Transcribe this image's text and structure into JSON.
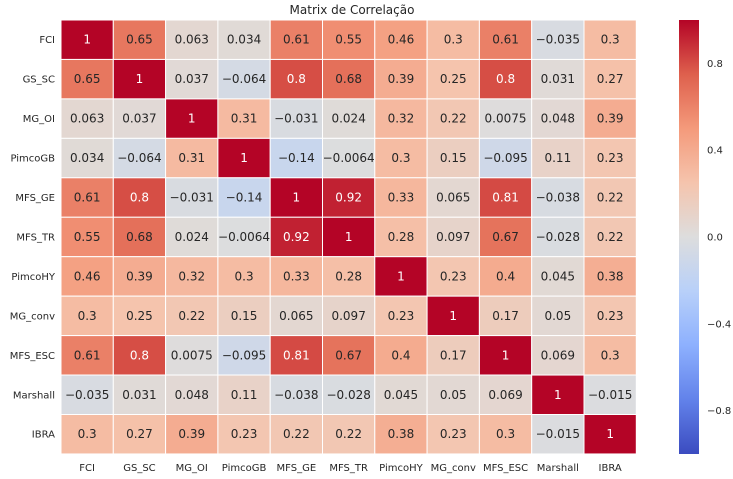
{
  "chart_data": {
    "type": "heatmap",
    "title": "Matrix de Correlação",
    "xlabel": "",
    "ylabel": "",
    "labels": [
      "FCI",
      "GS_SC",
      "MG_OI",
      "PimcoGB",
      "MFS_GE",
      "MFS_TR",
      "PimcoHY",
      "MG_conv",
      "MFS_ESC",
      "Marshall",
      "IBRA"
    ],
    "values": [
      [
        1,
        0.65,
        0.063,
        0.034,
        0.61,
        0.55,
        0.46,
        0.3,
        0.61,
        -0.035,
        0.3
      ],
      [
        0.65,
        1,
        0.037,
        -0.064,
        0.8,
        0.68,
        0.39,
        0.25,
        0.8,
        0.031,
        0.27
      ],
      [
        0.063,
        0.037,
        1,
        0.31,
        -0.031,
        0.024,
        0.32,
        0.22,
        0.0075,
        0.048,
        0.39
      ],
      [
        0.034,
        -0.064,
        0.31,
        1,
        -0.14,
        -0.0064,
        0.3,
        0.15,
        -0.095,
        0.11,
        0.23
      ],
      [
        0.61,
        0.8,
        -0.031,
        -0.14,
        1,
        0.92,
        0.33,
        0.065,
        0.81,
        -0.038,
        0.22
      ],
      [
        0.55,
        0.68,
        0.024,
        -0.0064,
        0.92,
        1,
        0.28,
        0.097,
        0.67,
        -0.028,
        0.22
      ],
      [
        0.46,
        0.39,
        0.32,
        0.3,
        0.33,
        0.28,
        1,
        0.23,
        0.4,
        0.045,
        0.38
      ],
      [
        0.3,
        0.25,
        0.22,
        0.15,
        0.065,
        0.097,
        0.23,
        1,
        0.17,
        0.05,
        0.23
      ],
      [
        0.61,
        0.8,
        0.0075,
        -0.095,
        0.81,
        0.67,
        0.4,
        0.17,
        1,
        0.069,
        0.3
      ],
      [
        -0.035,
        0.031,
        0.048,
        0.11,
        -0.038,
        -0.028,
        0.045,
        0.05,
        0.069,
        1,
        -0.015
      ],
      [
        0.3,
        0.27,
        0.39,
        0.23,
        0.22,
        0.22,
        0.38,
        0.23,
        0.3,
        -0.015,
        1
      ]
    ],
    "colorbar": {
      "min": -1,
      "max": 1,
      "ticks": [
        0.8,
        0.4,
        0.0,
        -0.4,
        -0.8
      ],
      "tick_labels": [
        "0.8",
        "0.4",
        "0.0",
        "−0.4",
        "−0.8"
      ],
      "colormap": "coolwarm"
    },
    "annotations": true,
    "grid": false,
    "legend": "colorbar-right"
  }
}
